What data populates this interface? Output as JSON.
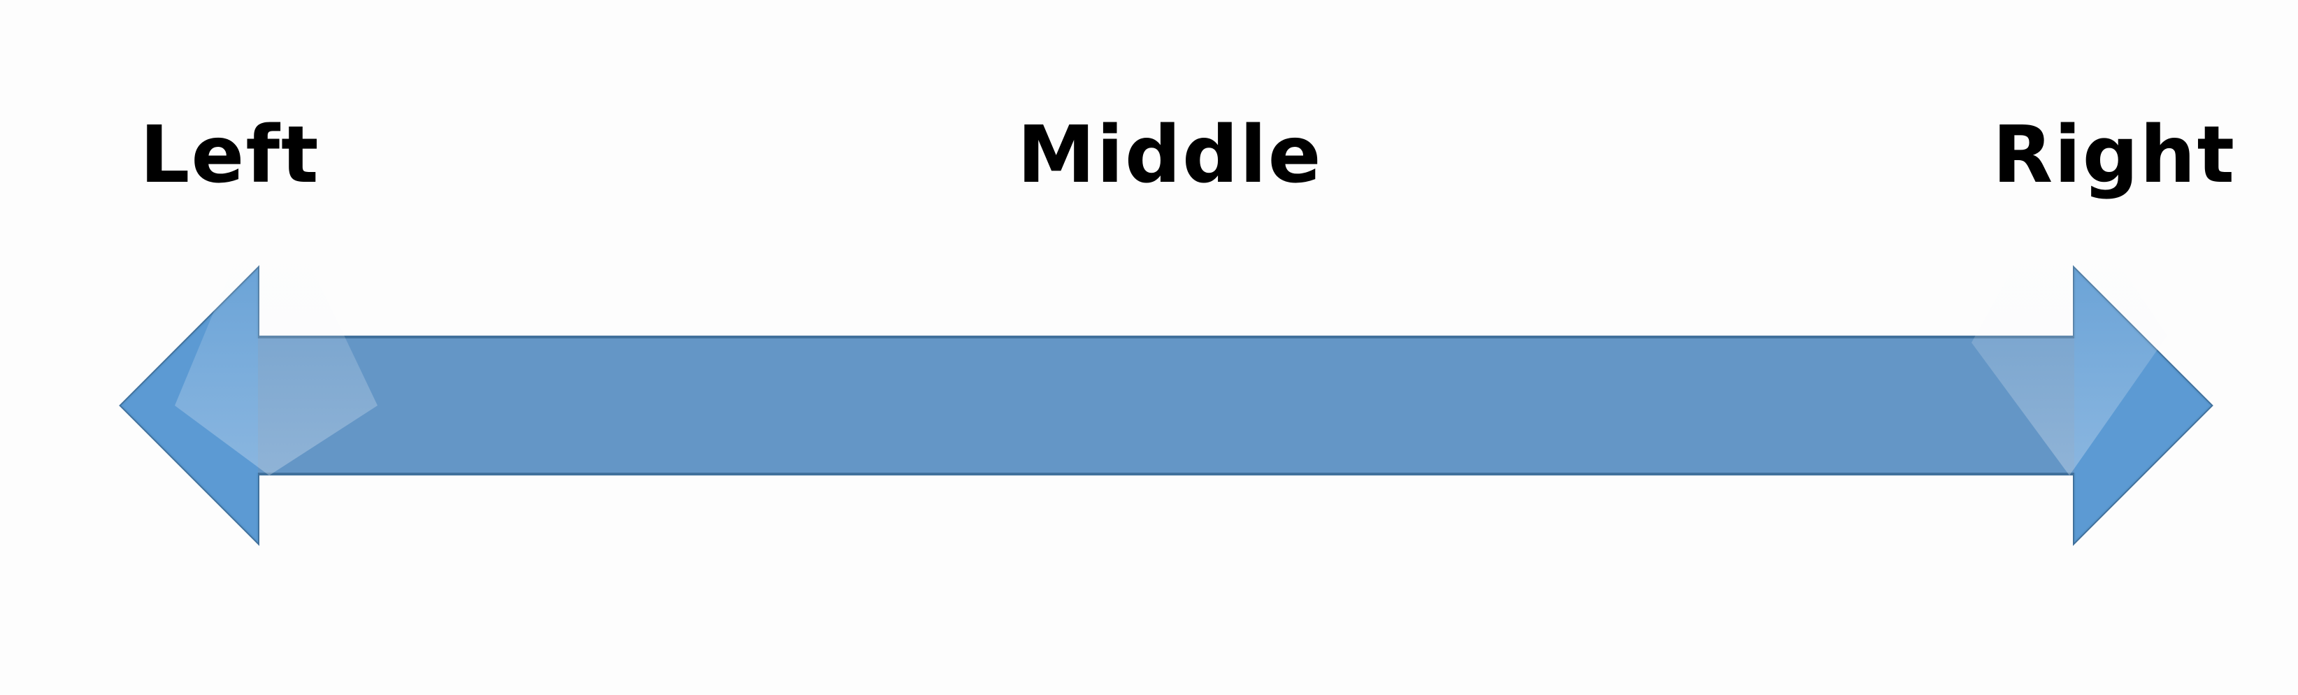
{
  "labels": {
    "left": "Left",
    "middle": "Middle",
    "right": "Right"
  },
  "colors": {
    "arrow_fill": "#6496c6",
    "arrow_head_fill": "#5b9bd5",
    "arrow_stroke": "#41719c",
    "text": "#000000",
    "background": "#fdfdfd"
  },
  "shape": {
    "type": "double-headed arrow"
  }
}
